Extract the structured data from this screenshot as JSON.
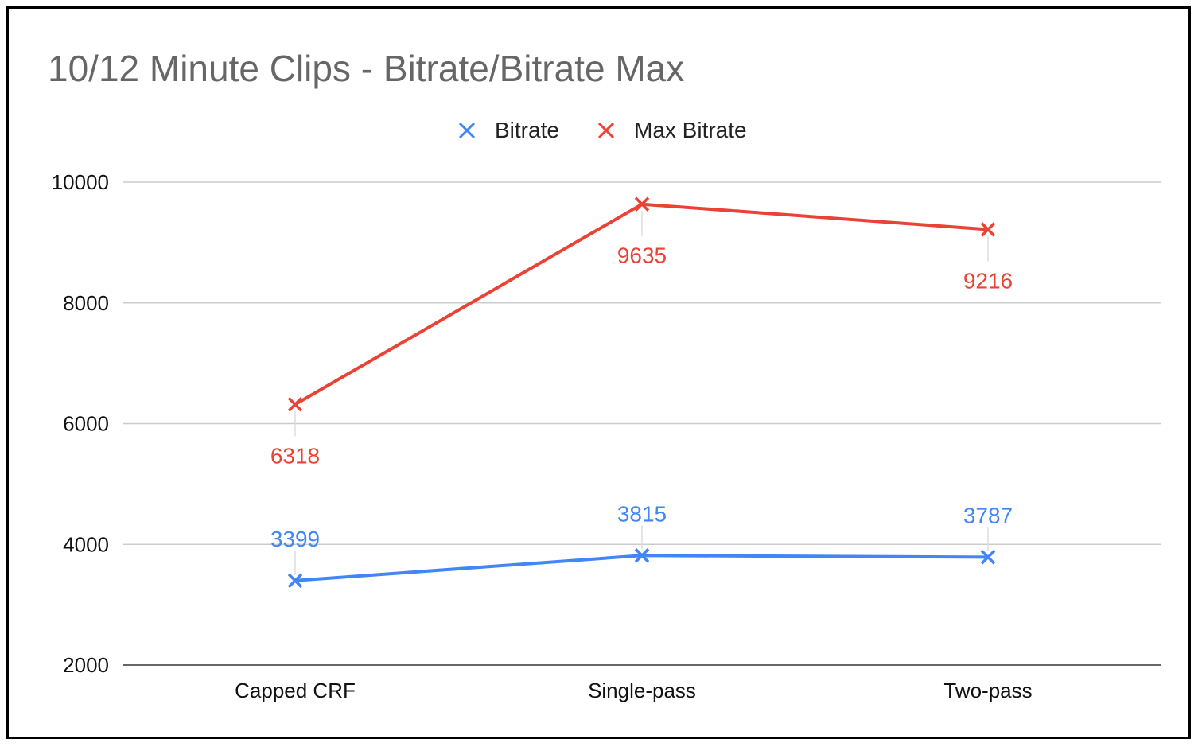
{
  "chart_data": {
    "type": "line",
    "title": "10/12 Minute Clips - Bitrate/Bitrate Max",
    "xlabel": "",
    "ylabel": "",
    "categories": [
      "Capped CRF",
      "Single-pass",
      "Two-pass"
    ],
    "ylim": [
      2000,
      10000
    ],
    "yticks": [
      2000,
      4000,
      6000,
      8000,
      10000
    ],
    "grid": true,
    "legend_position": "top-center",
    "marker": "x",
    "series": [
      {
        "name": "Bitrate",
        "color": "#4285f4",
        "values": [
          3399,
          3815,
          3787
        ],
        "labels": [
          "3399",
          "3815",
          "3787"
        ],
        "label_position": "above"
      },
      {
        "name": "Max Bitrate",
        "color": "#ea4335",
        "values": [
          6318,
          9635,
          9216
        ],
        "labels": [
          "6318",
          "9635",
          "9216"
        ],
        "label_position": "below"
      }
    ]
  }
}
